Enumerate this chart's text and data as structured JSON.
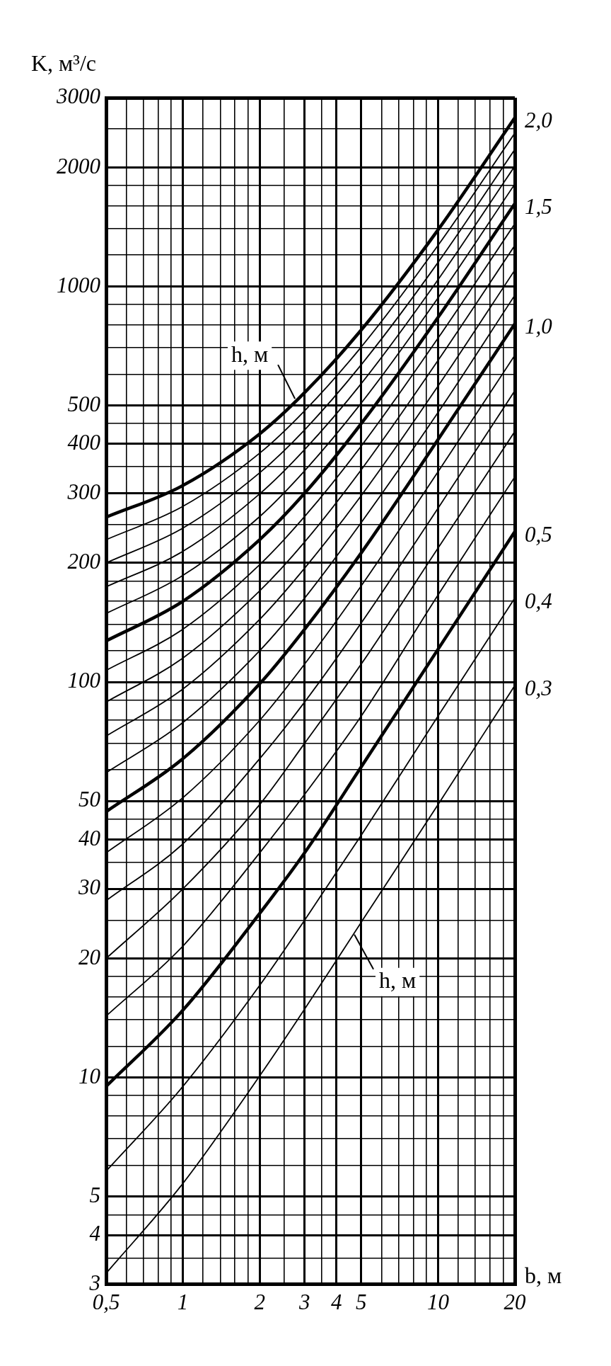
{
  "chart_data": {
    "type": "line",
    "xlabel": "b, м",
    "ylabel": "K, м³/с",
    "log": "xy",
    "grid": true,
    "x": [
      0.5,
      1,
      2,
      3,
      5,
      10,
      20
    ],
    "xlim": [
      0.5,
      20
    ],
    "xticks": [
      {
        "value": 0.5,
        "label": "0,5"
      },
      {
        "value": 0.6,
        "label": null
      },
      {
        "value": 0.7,
        "label": null
      },
      {
        "value": 0.8,
        "label": null
      },
      {
        "value": 0.9,
        "label": null
      },
      1,
      {
        "value": 1.2,
        "label": null
      },
      {
        "value": 1.4,
        "label": null
      },
      {
        "value": 1.6,
        "label": null
      },
      {
        "value": 1.8,
        "label": null
      },
      2,
      {
        "value": 2.5,
        "label": null
      },
      3,
      {
        "value": 3.5,
        "label": null
      },
      4,
      5,
      {
        "value": 6,
        "label": null
      },
      {
        "value": 7,
        "label": null
      },
      {
        "value": 8,
        "label": null
      },
      {
        "value": 9,
        "label": null
      },
      10,
      {
        "value": 12,
        "label": null
      },
      {
        "value": 14,
        "label": null
      },
      {
        "value": 16,
        "label": null
      },
      {
        "value": 18,
        "label": null
      },
      20
    ],
    "ylim": [
      3,
      3000
    ],
    "yticks": [
      3,
      {
        "value": 3.5,
        "label": null
      },
      4,
      {
        "value": 4.5,
        "label": null
      },
      5,
      {
        "value": 6,
        "label": null
      },
      {
        "value": 7,
        "label": null
      },
      {
        "value": 8,
        "label": null
      },
      {
        "value": 9,
        "label": null
      },
      10,
      {
        "value": 12,
        "label": null
      },
      {
        "value": 14,
        "label": null
      },
      {
        "value": 16,
        "label": null
      },
      {
        "value": 18,
        "label": null
      },
      20,
      {
        "value": 25,
        "label": null
      },
      30,
      {
        "value": 35,
        "label": null
      },
      40,
      {
        "value": 45,
        "label": null
      },
      50,
      {
        "value": 60,
        "label": null
      },
      {
        "value": 70,
        "label": null
      },
      {
        "value": 80,
        "label": null
      },
      {
        "value": 90,
        "label": null
      },
      100,
      {
        "value": 120,
        "label": null
      },
      {
        "value": 140,
        "label": null
      },
      {
        "value": 160,
        "label": null
      },
      {
        "value": 180,
        "label": null
      },
      200,
      {
        "value": 250,
        "label": null
      },
      300,
      {
        "value": 350,
        "label": null
      },
      400,
      {
        "value": 450,
        "label": null
      },
      500,
      {
        "value": 600,
        "label": null
      },
      {
        "value": 700,
        "label": null
      },
      {
        "value": 800,
        "label": null
      },
      {
        "value": 900,
        "label": null
      },
      1000,
      {
        "value": 1200,
        "label": null
      },
      {
        "value": 1400,
        "label": null
      },
      {
        "value": 1600,
        "label": null
      },
      {
        "value": 1800,
        "label": null
      },
      2000,
      {
        "value": 2500,
        "label": null
      },
      3000
    ],
    "series": [
      {
        "name": "0,3",
        "color": "#000000",
        "values": [
          3.2,
          5.4,
          10.1,
          14.9,
          24.7,
          49,
          98
        ]
      },
      {
        "name": "0,4",
        "color": "#000000",
        "values": [
          5.8,
          9.5,
          17.1,
          25,
          41,
          82,
          163
        ]
      },
      {
        "name": "0,5",
        "color": "#000000",
        "values": [
          9.5,
          14.8,
          26,
          37,
          61,
          121,
          240
        ]
      },
      {
        "color": "#000000",
        "values": [
          14.3,
          21.5,
          37,
          52,
          82,
          166,
          330
        ]
      },
      {
        "color": "#000000",
        "values": [
          20,
          30,
          49,
          70,
          111,
          218,
          430
        ]
      },
      {
        "color": "#000000",
        "values": [
          28,
          39,
          64,
          89,
          141,
          275,
          545
        ]
      },
      {
        "color": "#000000",
        "values": [
          37,
          51,
          80,
          111,
          175,
          340,
          670
        ]
      },
      {
        "name": "1,0",
        "color": "#000000",
        "values": [
          47,
          64,
          99,
          136,
          212,
          410,
          805
        ]
      },
      {
        "color": "#000000",
        "values": [
          59,
          79,
          120,
          163,
          253,
          480,
          950
        ]
      },
      {
        "color": "#000000",
        "values": [
          73,
          96,
          144,
          194,
          296,
          560,
          1100
        ]
      },
      {
        "color": "#000000",
        "values": [
          89,
          115,
          170,
          226,
          344,
          650,
          1270
        ]
      },
      {
        "color": "#000000",
        "values": [
          107,
          136,
          198,
          262,
          395,
          740,
          1440
        ]
      },
      {
        "name": "1,5",
        "color": "#000000",
        "values": [
          127,
          160,
          229,
          300,
          450,
          835,
          1620
        ]
      },
      {
        "color": "#000000",
        "values": [
          149,
          186,
          262,
          342,
          507,
          935,
          1815
        ]
      },
      {
        "color": "#000000",
        "values": [
          174,
          214,
          299,
          387,
          568,
          1040,
          2015
        ]
      },
      {
        "color": "#000000",
        "values": [
          200,
          245,
          338,
          434,
          634,
          1150,
          2220
        ]
      },
      {
        "color": "#000000",
        "values": [
          229,
          278,
          379,
          485,
          703,
          1270,
          2440
        ]
      },
      {
        "name": "2,0",
        "color": "#000000",
        "values": [
          261,
          314,
          424,
          539,
          776,
          1390,
          2670
        ]
      }
    ],
    "annotations": [
      {
        "text": "h, м",
        "x": 2.75,
        "y": 520
      },
      {
        "text": "h, м",
        "x": 4.7,
        "y": 23
      }
    ]
  }
}
